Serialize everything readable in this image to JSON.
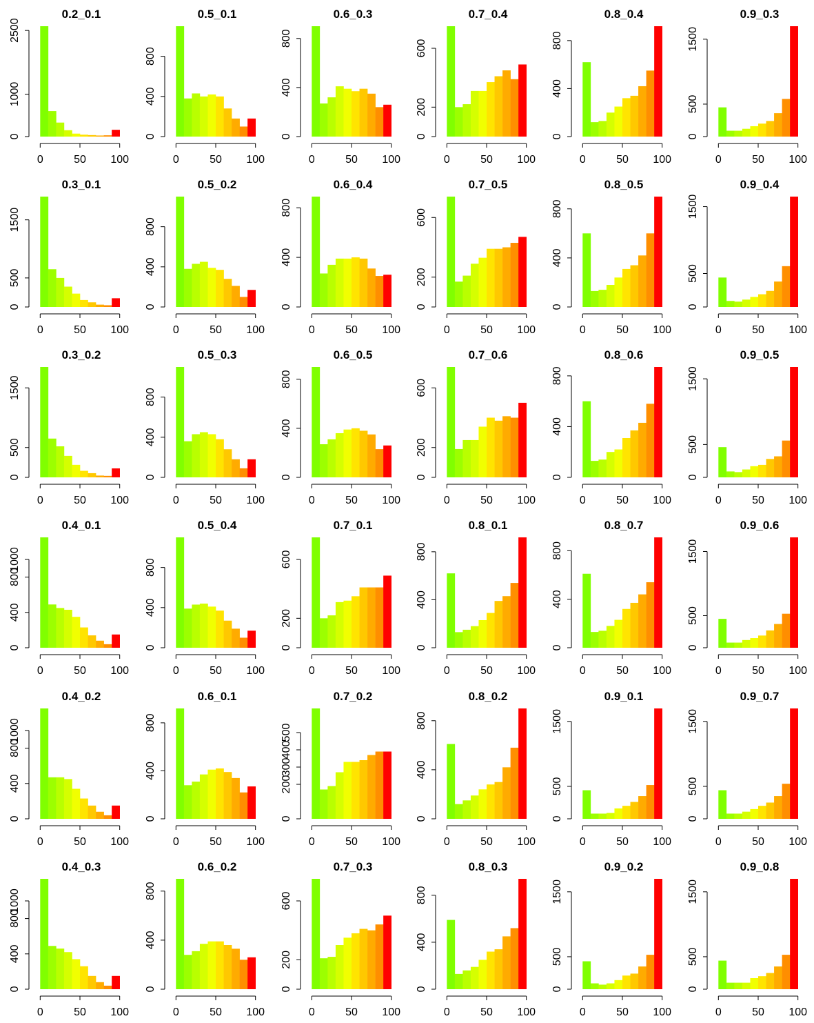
{
  "chart_data": [
    {
      "title": "0.2_0.1",
      "type": "bar",
      "ylim": [
        0,
        2600
      ],
      "yticks": [
        0,
        1000,
        2500
      ],
      "xticks": [
        0,
        50,
        100
      ],
      "values": [
        2600,
        600,
        330,
        150,
        70,
        45,
        35,
        25,
        30,
        160
      ]
    },
    {
      "title": "0.5_0.1",
      "type": "bar",
      "ylim": [
        0,
        1100
      ],
      "yticks": [
        0,
        400,
        800
      ],
      "xticks": [
        0,
        50,
        100
      ],
      "values": [
        1100,
        380,
        430,
        400,
        420,
        400,
        280,
        180,
        100,
        180
      ]
    },
    {
      "title": "0.6_0.3",
      "type": "bar",
      "ylim": [
        0,
        900
      ],
      "yticks": [
        0,
        400,
        800
      ],
      "xticks": [
        0,
        50,
        100
      ],
      "values": [
        900,
        270,
        320,
        410,
        390,
        370,
        390,
        350,
        240,
        260
      ]
    },
    {
      "title": "0.7_0.4",
      "type": "bar",
      "ylim": [
        0,
        750
      ],
      "yticks": [
        0,
        200,
        600
      ],
      "xticks": [
        0,
        50,
        100
      ],
      "values": [
        750,
        200,
        220,
        310,
        310,
        370,
        410,
        450,
        390,
        490
      ]
    },
    {
      "title": "0.8_0.4",
      "type": "bar",
      "ylim": [
        0,
        920
      ],
      "yticks": [
        0,
        400,
        800
      ],
      "xticks": [
        0,
        50,
        100
      ],
      "values": [
        620,
        120,
        130,
        200,
        250,
        320,
        340,
        420,
        550,
        920
      ]
    },
    {
      "title": "0.9_0.3",
      "type": "bar",
      "ylim": [
        0,
        1700
      ],
      "yticks": [
        0,
        500,
        1500
      ],
      "xticks": [
        0,
        50,
        100
      ],
      "values": [
        450,
        90,
        90,
        120,
        160,
        200,
        240,
        360,
        580,
        1700
      ]
    },
    {
      "title": "0.3_0.1",
      "type": "bar",
      "ylim": [
        0,
        1900
      ],
      "yticks": [
        0,
        500,
        1500
      ],
      "xticks": [
        0,
        50,
        100
      ],
      "values": [
        1900,
        650,
        500,
        350,
        230,
        120,
        80,
        40,
        30,
        150
      ]
    },
    {
      "title": "0.5_0.2",
      "type": "bar",
      "ylim": [
        0,
        1100
      ],
      "yticks": [
        0,
        400,
        800
      ],
      "xticks": [
        0,
        50,
        100
      ],
      "values": [
        1100,
        380,
        430,
        450,
        390,
        370,
        280,
        210,
        100,
        170
      ]
    },
    {
      "title": "0.6_0.4",
      "type": "bar",
      "ylim": [
        0,
        890
      ],
      "yticks": [
        0,
        400,
        800
      ],
      "xticks": [
        0,
        50,
        100
      ],
      "values": [
        890,
        270,
        340,
        390,
        390,
        400,
        390,
        310,
        250,
        260
      ]
    },
    {
      "title": "0.7_0.5",
      "type": "bar",
      "ylim": [
        0,
        740
      ],
      "yticks": [
        0,
        200,
        600
      ],
      "xticks": [
        0,
        50,
        100
      ],
      "values": [
        740,
        170,
        210,
        290,
        330,
        390,
        390,
        400,
        430,
        470
      ]
    },
    {
      "title": "0.8_0.5",
      "type": "bar",
      "ylim": [
        0,
        900
      ],
      "yticks": [
        0,
        400,
        800
      ],
      "xticks": [
        0,
        50,
        100
      ],
      "values": [
        600,
        130,
        140,
        180,
        240,
        310,
        340,
        420,
        600,
        900
      ]
    },
    {
      "title": "0.9_0.4",
      "type": "bar",
      "ylim": [
        0,
        1650
      ],
      "yticks": [
        0,
        500,
        1500
      ],
      "xticks": [
        0,
        50,
        100
      ],
      "values": [
        440,
        90,
        80,
        110,
        150,
        190,
        240,
        380,
        610,
        1650
      ]
    },
    {
      "title": "0.3_0.2",
      "type": "bar",
      "ylim": [
        0,
        1850
      ],
      "yticks": [
        0,
        500,
        1500
      ],
      "xticks": [
        0,
        50,
        100
      ],
      "values": [
        1850,
        650,
        520,
        360,
        210,
        110,
        70,
        30,
        25,
        150
      ]
    },
    {
      "title": "0.5_0.3",
      "type": "bar",
      "ylim": [
        0,
        1100
      ],
      "yticks": [
        0,
        400,
        800
      ],
      "xticks": [
        0,
        50,
        100
      ],
      "values": [
        1100,
        360,
        430,
        450,
        430,
        380,
        280,
        180,
        90,
        180
      ]
    },
    {
      "title": "0.6_0.5",
      "type": "bar",
      "ylim": [
        0,
        900
      ],
      "yticks": [
        0,
        400,
        800
      ],
      "xticks": [
        0,
        50,
        100
      ],
      "values": [
        900,
        270,
        310,
        360,
        390,
        400,
        380,
        350,
        230,
        260
      ]
    },
    {
      "title": "0.7_0.6",
      "type": "bar",
      "ylim": [
        0,
        740
      ],
      "yticks": [
        0,
        200,
        600
      ],
      "xticks": [
        0,
        50,
        100
      ],
      "values": [
        740,
        190,
        250,
        250,
        340,
        400,
        380,
        410,
        400,
        500
      ]
    },
    {
      "title": "0.8_0.6",
      "type": "bar",
      "ylim": [
        0,
        870
      ],
      "yticks": [
        0,
        400,
        800
      ],
      "xticks": [
        0,
        50,
        100
      ],
      "values": [
        600,
        130,
        140,
        200,
        220,
        310,
        370,
        430,
        580,
        870
      ]
    },
    {
      "title": "0.9_0.5",
      "type": "bar",
      "ylim": [
        0,
        1680
      ],
      "yticks": [
        0,
        500,
        1500
      ],
      "xticks": [
        0,
        50,
        100
      ],
      "values": [
        460,
        90,
        80,
        120,
        170,
        190,
        280,
        320,
        560,
        1680
      ]
    },
    {
      "title": "0.4_0.1",
      "type": "bar",
      "ylim": [
        0,
        1250
      ],
      "yticks": [
        0,
        400,
        800,
        1000
      ],
      "xticks": [
        0,
        50,
        100
      ],
      "values": [
        1250,
        490,
        450,
        430,
        350,
        230,
        140,
        80,
        40,
        150
      ]
    },
    {
      "title": "0.5_0.4",
      "type": "bar",
      "ylim": [
        0,
        1100
      ],
      "yticks": [
        0,
        400,
        800
      ],
      "xticks": [
        0,
        50,
        100
      ],
      "values": [
        1100,
        390,
        430,
        440,
        410,
        370,
        270,
        190,
        100,
        170
      ]
    },
    {
      "title": "0.7_0.1",
      "type": "bar",
      "ylim": [
        0,
        750
      ],
      "yticks": [
        0,
        200,
        600
      ],
      "xticks": [
        0,
        50,
        100
      ],
      "values": [
        750,
        200,
        220,
        310,
        320,
        350,
        410,
        410,
        410,
        490
      ]
    },
    {
      "title": "0.8_0.1",
      "type": "bar",
      "ylim": [
        0,
        920
      ],
      "yticks": [
        0,
        400,
        800
      ],
      "xticks": [
        0,
        50,
        100
      ],
      "values": [
        620,
        130,
        150,
        180,
        230,
        290,
        390,
        430,
        540,
        920
      ]
    },
    {
      "title": "0.8_0.7",
      "type": "bar",
      "ylim": [
        0,
        910
      ],
      "yticks": [
        0,
        400,
        800
      ],
      "xticks": [
        0,
        50,
        100
      ],
      "values": [
        610,
        130,
        140,
        180,
        230,
        320,
        370,
        440,
        540,
        910
      ]
    },
    {
      "title": "0.9_0.6",
      "type": "bar",
      "ylim": [
        0,
        1720
      ],
      "yticks": [
        0,
        500,
        1500
      ],
      "xticks": [
        0,
        50,
        100
      ],
      "values": [
        450,
        80,
        80,
        120,
        150,
        190,
        270,
        370,
        530,
        1720
      ]
    },
    {
      "title": "0.4_0.2",
      "type": "bar",
      "ylim": [
        0,
        1250
      ],
      "yticks": [
        0,
        400,
        800,
        1000
      ],
      "xticks": [
        0,
        50,
        100
      ],
      "values": [
        1250,
        470,
        470,
        450,
        340,
        230,
        150,
        80,
        40,
        150
      ]
    },
    {
      "title": "0.6_0.1",
      "type": "bar",
      "ylim": [
        0,
        920
      ],
      "yticks": [
        0,
        400,
        800
      ],
      "xticks": [
        0,
        50,
        100
      ],
      "values": [
        920,
        280,
        310,
        370,
        410,
        420,
        390,
        340,
        220,
        270
      ]
    },
    {
      "title": "0.7_0.2",
      "type": "bar",
      "ylim": [
        0,
        640
      ],
      "yticks": [
        0,
        200,
        300,
        400,
        500
      ],
      "xticks": [
        0,
        50,
        100
      ],
      "values": [
        640,
        170,
        190,
        270,
        330,
        330,
        340,
        370,
        390,
        390
      ]
    },
    {
      "title": "0.8_0.2",
      "type": "bar",
      "ylim": [
        0,
        900
      ],
      "yticks": [
        0,
        400,
        800
      ],
      "xticks": [
        0,
        50,
        100
      ],
      "values": [
        610,
        120,
        150,
        190,
        240,
        280,
        300,
        420,
        580,
        900
      ]
    },
    {
      "title": "0.9_0.1",
      "type": "bar",
      "ylim": [
        0,
        1700
      ],
      "yticks": [
        0,
        500,
        1500
      ],
      "xticks": [
        0,
        50,
        100
      ],
      "values": [
        440,
        80,
        80,
        90,
        160,
        200,
        260,
        350,
        520,
        1700
      ]
    },
    {
      "title": "0.9_0.7",
      "type": "bar",
      "ylim": [
        0,
        1700
      ],
      "yticks": [
        0,
        500,
        1500
      ],
      "xticks": [
        0,
        50,
        100
      ],
      "values": [
        440,
        80,
        80,
        110,
        150,
        200,
        250,
        350,
        540,
        1700
      ]
    },
    {
      "title": "0.4_0.3",
      "type": "bar",
      "ylim": [
        0,
        1250
      ],
      "yticks": [
        0,
        400,
        800,
        1000
      ],
      "xticks": [
        0,
        50,
        100
      ],
      "values": [
        1250,
        490,
        460,
        420,
        340,
        260,
        150,
        80,
        40,
        150
      ]
    },
    {
      "title": "0.6_0.2",
      "type": "bar",
      "ylim": [
        0,
        900
      ],
      "yticks": [
        0,
        400,
        800
      ],
      "xticks": [
        0,
        50,
        100
      ],
      "values": [
        900,
        280,
        310,
        370,
        390,
        390,
        360,
        330,
        240,
        260
      ]
    },
    {
      "title": "0.7_0.3",
      "type": "bar",
      "ylim": [
        0,
        750
      ],
      "yticks": [
        0,
        200,
        600
      ],
      "xticks": [
        0,
        50,
        100
      ],
      "values": [
        750,
        210,
        220,
        300,
        350,
        380,
        410,
        400,
        440,
        500
      ]
    },
    {
      "title": "0.8_0.3",
      "type": "bar",
      "ylim": [
        0,
        940
      ],
      "yticks": [
        0,
        400,
        800
      ],
      "xticks": [
        0,
        50,
        100
      ],
      "values": [
        590,
        130,
        160,
        190,
        250,
        320,
        340,
        450,
        520,
        940
      ]
    },
    {
      "title": "0.9_0.2",
      "type": "bar",
      "ylim": [
        0,
        1700
      ],
      "yticks": [
        0,
        500,
        1500
      ],
      "xticks": [
        0,
        50,
        100
      ],
      "values": [
        430,
        90,
        70,
        90,
        140,
        210,
        240,
        350,
        530,
        1700
      ]
    },
    {
      "title": "0.9_0.8",
      "type": "bar",
      "ylim": [
        0,
        1700
      ],
      "yticks": [
        0,
        500,
        1500
      ],
      "xticks": [
        0,
        50,
        100
      ],
      "values": [
        440,
        100,
        100,
        100,
        170,
        200,
        250,
        350,
        530,
        1700
      ]
    }
  ],
  "bin_colors": [
    "#80ff00",
    "#9cff00",
    "#b9ff00",
    "#d5ff00",
    "#f1ff00",
    "#ffe400",
    "#ffc800",
    "#ffab00",
    "#ff8e00",
    "#ff0000"
  ]
}
